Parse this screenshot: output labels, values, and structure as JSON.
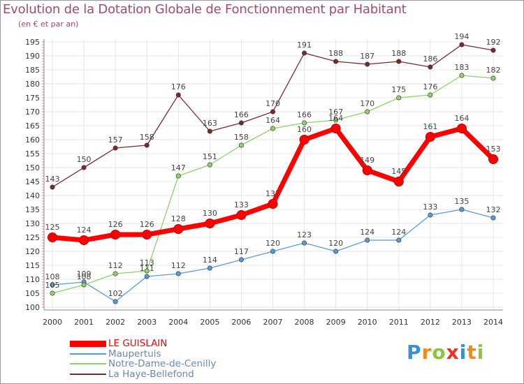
{
  "header": {
    "title": "Evolution de la Dotation Globale de Fonctionnement par Habitant",
    "subtitle": "(en € et par an)"
  },
  "logo": {
    "text": "Proxiti",
    "letters": [
      "P",
      "r",
      "o",
      "x",
      "i",
      "t",
      "i"
    ]
  },
  "colors": {
    "title": "#a24b70",
    "grid": "#e2e2e2",
    "axis_text": "#333333",
    "le_guislain": "#ff0000",
    "maupertuis": "#5b9bd5",
    "notre_dame": "#8fd16a",
    "la_haye": "#7a2a2a"
  },
  "chart_data": {
    "type": "line",
    "title": "Evolution de la Dotation Globale de Fonctionnement par Habitant",
    "subtitle": "(en € et par an)",
    "xlabel": "",
    "ylabel": "",
    "x": [
      "2000",
      "2001",
      "2002",
      "2003",
      "2004",
      "2005",
      "2006",
      "2007",
      "2008",
      "2009",
      "2010",
      "2011",
      "2012",
      "2013",
      "2014"
    ],
    "ylim": [
      100,
      195
    ],
    "yticks": [
      "100",
      "105",
      "110",
      "115",
      "120",
      "125",
      "130",
      "135",
      "140",
      "145",
      "150",
      "155",
      "160",
      "165",
      "170",
      "175",
      "180",
      "185",
      "190",
      "195"
    ],
    "grid": true,
    "legend_position": "bottom-left",
    "series": [
      {
        "name": "LE GUISLAIN",
        "key": "le_guislain",
        "color": "#ff0000",
        "values": [
          125,
          124,
          126,
          126,
          128,
          130,
          133,
          137,
          160,
          164,
          149,
          145,
          161,
          164,
          153
        ],
        "labels": [
          "125",
          "124",
          "126",
          "126",
          "128",
          "130",
          "133",
          "137",
          "160",
          "164",
          "149",
          "145",
          "161",
          "164",
          "153"
        ]
      },
      {
        "name": "Maupertuis",
        "key": "maupertuis",
        "color": "#5b9bd5",
        "values": [
          108,
          109,
          102,
          111,
          112,
          114,
          117,
          120,
          123,
          120,
          124,
          124,
          133,
          135,
          132
        ],
        "labels": [
          "108",
          "109",
          "102",
          "111",
          "112",
          "114",
          "117",
          "120",
          "123",
          "120",
          "124",
          "124",
          "133",
          "135",
          "132"
        ]
      },
      {
        "name": "Notre-Dame-de-Cenilly",
        "key": "notre_dame",
        "color": "#8fd16a",
        "values": [
          105,
          108,
          112,
          113,
          147,
          151,
          158,
          164,
          166,
          167,
          170,
          175,
          176,
          183,
          182
        ],
        "labels": [
          "105",
          "108",
          "112",
          "113",
          "147",
          "151",
          "158",
          "164",
          "166",
          "167",
          "170",
          "175",
          "176",
          "183",
          "182"
        ]
      },
      {
        "name": "La Haye-Bellefond",
        "key": "la_haye",
        "color": "#7a2a2a",
        "values": [
          143,
          150,
          157,
          158,
          176,
          163,
          166,
          170,
          191,
          188,
          187,
          188,
          186,
          194,
          192
        ],
        "labels": [
          "143",
          "150",
          "157",
          "158",
          "176",
          "163",
          "166",
          "170",
          "191",
          "188",
          "187",
          "188",
          "186",
          "194",
          "192"
        ]
      }
    ]
  }
}
